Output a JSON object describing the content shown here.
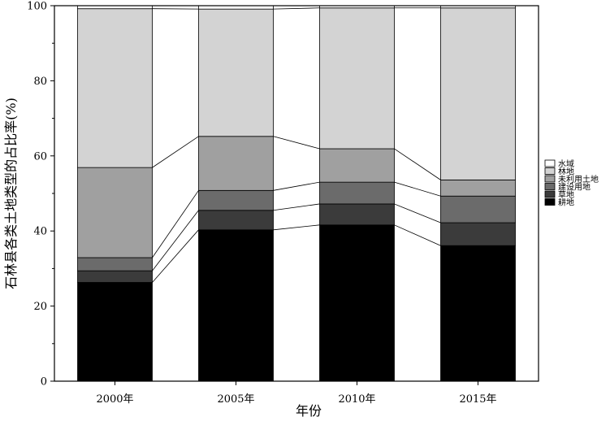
{
  "chart_data": {
    "type": "bar",
    "stacked": true,
    "categories": [
      "2000年",
      "2005年",
      "2010年",
      "2015年"
    ],
    "xlabel": "年份",
    "ylabel": "石林县各类土地类型的占比率(%)",
    "ylim": [
      0,
      100
    ],
    "yticks": [
      0,
      20,
      40,
      60,
      80,
      100
    ],
    "legend_position": "right",
    "series": [
      {
        "name": "耕地",
        "color": "#000000",
        "values": [
          26.3,
          40.3,
          41.6,
          36.1
        ]
      },
      {
        "name": "草地",
        "color": "#3b3b3b",
        "values": [
          3.1,
          5.2,
          5.6,
          6.1
        ]
      },
      {
        "name": "建设用地",
        "color": "#6b6b6b",
        "values": [
          3.5,
          5.3,
          5.8,
          7.1
        ]
      },
      {
        "name": "未利用土地",
        "color": "#a0a0a0",
        "values": [
          24.0,
          14.4,
          8.9,
          4.3
        ]
      },
      {
        "name": "林地",
        "color": "#d3d3d3",
        "values": [
          42.3,
          33.9,
          37.5,
          45.8
        ]
      },
      {
        "name": "水域",
        "color": "#ffffff",
        "values": [
          0.8,
          0.9,
          0.6,
          0.6
        ]
      }
    ],
    "legend_order": [
      "水域",
      "林地",
      "未利用土地",
      "建设用地",
      "草地",
      "耕地"
    ],
    "connector_lines": true
  }
}
